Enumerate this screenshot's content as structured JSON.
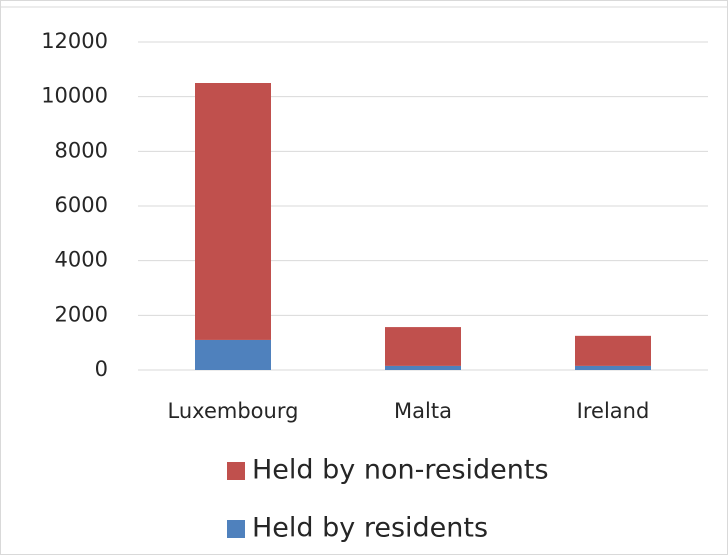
{
  "chart_data": {
    "type": "stacked-bar",
    "categories": [
      "Luxembourg",
      "Malta",
      "Ireland"
    ],
    "series": [
      {
        "name": "Held by non-residents",
        "color": "#c0504d",
        "values": [
          9400,
          1420,
          1100
        ]
      },
      {
        "name": "Held by residents",
        "color": "#4f81bd",
        "values": [
          1100,
          150,
          150
        ]
      }
    ],
    "ylim": [
      0,
      12000
    ],
    "yticks": [
      0,
      2000,
      4000,
      6000,
      8000,
      10000,
      12000
    ],
    "grid": true
  }
}
